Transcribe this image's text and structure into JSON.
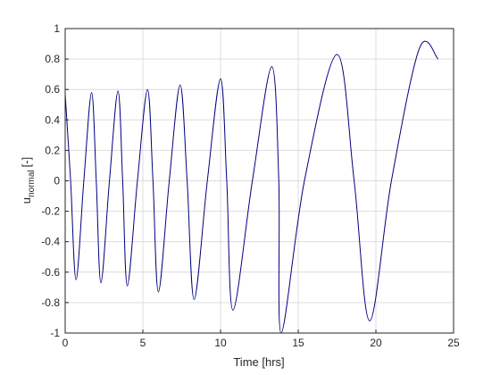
{
  "chart_data": {
    "type": "line",
    "xlabel": "Time [hrs]",
    "ylabel": "u",
    "ylabel_sub": "normal",
    "ylabel_unit": "[-]",
    "x": [
      0,
      0.35,
      0.7,
      1.2,
      1.7,
      2.0,
      2.3,
      2.85,
      3.4,
      3.7,
      4.0,
      4.65,
      5.3,
      5.65,
      6.0,
      6.7,
      7.4,
      7.85,
      8.3,
      9.15,
      10.0,
      10.4,
      10.8,
      12.05,
      13.3,
      13.75,
      13.9,
      15.4,
      17.5,
      18.6,
      19.6,
      21.0,
      22.8,
      24.0
    ],
    "series": [
      {
        "color": "#000080",
        "values": [
          0.57,
          0,
          -0.65,
          0,
          0.58,
          0,
          -0.67,
          0,
          0.59,
          0,
          -0.69,
          0,
          0.6,
          0,
          -0.73,
          0,
          0.63,
          0,
          -0.78,
          0,
          0.67,
          0,
          -0.85,
          0,
          0.75,
          0,
          -1.0,
          0,
          0.83,
          0,
          -0.92,
          0,
          0.87,
          0.8
        ]
      }
    ],
    "xlim": [
      0,
      25
    ],
    "xticks": [
      0,
      5,
      10,
      15,
      20,
      25
    ],
    "ylim": [
      -1,
      1
    ],
    "yticks": [
      -1,
      -0.8,
      -0.6,
      -0.4,
      -0.2,
      0,
      0.2,
      0.4,
      0.6,
      0.8,
      1
    ],
    "grid": true
  }
}
